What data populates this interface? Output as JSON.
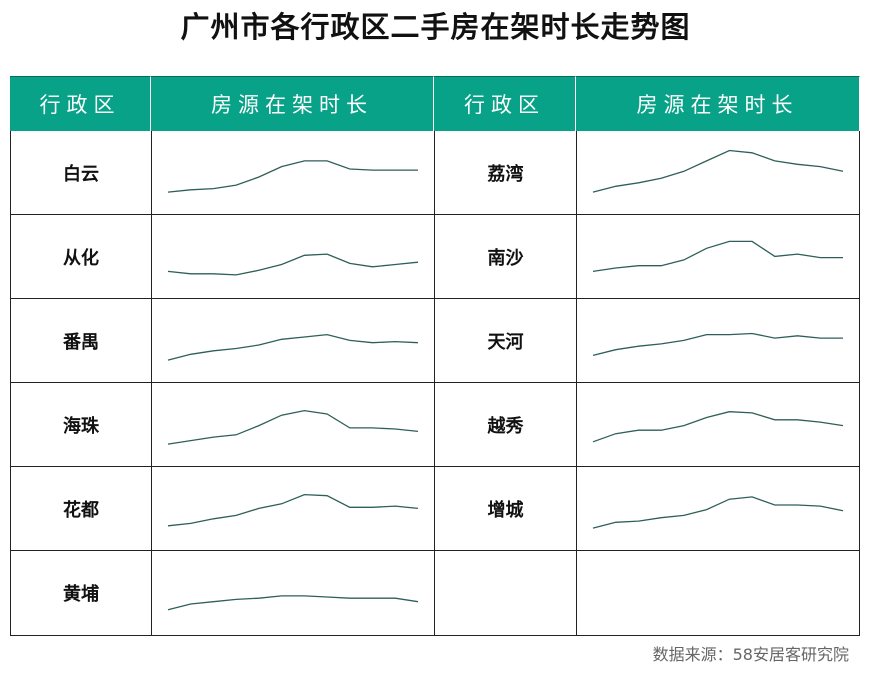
{
  "title": "广州市各行政区二手房在架时长走势图",
  "headers": {
    "district": "行政区",
    "trend": "房源在架时长"
  },
  "source": "数据来源：58安居客研究院",
  "colors": {
    "header_bg": "#07a287",
    "line": "#2e5f58"
  },
  "chart_data": {
    "type": "line",
    "title": "广州市各行政区二手房在架时长走势图",
    "note": "sparklines, relative values, no axes",
    "districts": [
      {
        "name": "白云",
        "values": [
          6,
          8,
          9,
          12,
          19,
          28,
          33,
          33,
          26,
          25,
          25,
          25
        ]
      },
      {
        "name": "荔湾",
        "values": [
          6,
          11,
          14,
          18,
          24,
          33,
          42,
          40,
          33,
          30,
          28,
          24
        ]
      },
      {
        "name": "从化",
        "values": [
          10,
          8,
          8,
          7,
          11,
          16,
          24,
          25,
          17,
          14,
          16,
          18
        ]
      },
      {
        "name": "南沙",
        "values": [
          10,
          13,
          15,
          15,
          20,
          30,
          36,
          36,
          23,
          25,
          22,
          22
        ]
      },
      {
        "name": "番禺",
        "values": [
          6,
          11,
          14,
          16,
          19,
          24,
          26,
          28,
          23,
          21,
          22,
          21
        ]
      },
      {
        "name": "天河",
        "values": [
          10,
          15,
          18,
          20,
          23,
          28,
          28,
          29,
          25,
          27,
          25,
          25
        ]
      },
      {
        "name": "海珠",
        "values": [
          6,
          9,
          12,
          14,
          22,
          31,
          35,
          32,
          20,
          20,
          19,
          17
        ]
      },
      {
        "name": "越秀",
        "values": [
          8,
          15,
          18,
          18,
          22,
          29,
          34,
          33,
          27,
          27,
          25,
          22
        ]
      },
      {
        "name": "花都",
        "values": [
          8,
          10,
          14,
          17,
          23,
          27,
          35,
          34,
          24,
          24,
          25,
          23
        ]
      },
      {
        "name": "增城",
        "values": [
          6,
          11,
          12,
          15,
          17,
          22,
          31,
          33,
          26,
          26,
          25,
          21
        ]
      },
      {
        "name": "黄埔",
        "values": [
          8,
          13,
          15,
          17,
          18,
          20,
          20,
          19,
          18,
          18,
          18,
          15
        ]
      }
    ]
  }
}
